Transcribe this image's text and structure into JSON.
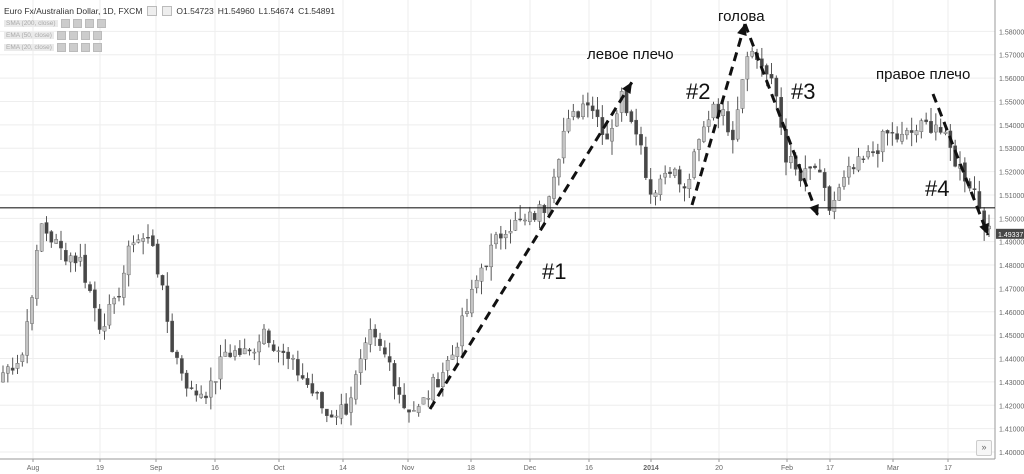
{
  "header": {
    "symbol": "Euro Fx/Australian Dollar, 1D, FXCM",
    "ohlc": {
      "o": "O1.54723",
      "h": "H1.54960",
      "l": "L1.54674",
      "c": "C1.54891"
    }
  },
  "indicators": [
    {
      "label": "SMA (200, close)"
    },
    {
      "label": "EMA (50, close)"
    },
    {
      "label": "EMA (20, close)"
    }
  ],
  "colors": {
    "bull": "#c4c4c4",
    "bear": "#474747",
    "wick": "#555555",
    "grid": "#eeeeee",
    "axis": "#9a9a9a",
    "support": "#222222",
    "arrow": "#111111",
    "price_tag": "#474747",
    "text": "#666666"
  },
  "annotations": {
    "left_shoulder": "левое плечо",
    "head": "голова",
    "right_shoulder": "правое плечо",
    "n1": "#1",
    "n2": "#2",
    "n3": "#3",
    "n4": "#4"
  },
  "controls": {
    "scroll_right": "»"
  },
  "chart_data": {
    "type": "candlestick",
    "title": "Euro Fx/Australian Dollar, 1D, FXCM",
    "ylim": [
      1.4,
      1.59
    ],
    "x_ticks": [
      "Aug",
      "19",
      "Sep",
      "16",
      "Oct",
      "14",
      "Nov",
      "18",
      "Dec",
      "16",
      "2014",
      "20",
      "Feb",
      "17",
      "Mar",
      "17"
    ],
    "y_ticks": [
      "1.58000",
      "1.57000",
      "1.56000",
      "1.55000",
      "1.54000",
      "1.53000",
      "1.52000",
      "1.51000",
      "1.50000",
      "1.49000",
      "1.48000",
      "1.47000",
      "1.46000",
      "1.45000",
      "1.44000",
      "1.43000",
      "1.42000",
      "1.41000",
      "1.40000"
    ],
    "last_price": "1.49337",
    "support_level": 1.5045,
    "waypoints": [
      [
        0,
        1.434
      ],
      [
        4,
        1.442
      ],
      [
        8,
        1.497
      ],
      [
        12,
        1.486
      ],
      [
        16,
        1.482
      ],
      [
        20,
        1.455
      ],
      [
        23,
        1.462
      ],
      [
        27,
        1.492
      ],
      [
        31,
        1.49
      ],
      [
        35,
        1.445
      ],
      [
        39,
        1.425
      ],
      [
        43,
        1.427
      ],
      [
        46,
        1.443
      ],
      [
        51,
        1.442
      ],
      [
        54,
        1.453
      ],
      [
        58,
        1.441
      ],
      [
        62,
        1.432
      ],
      [
        67,
        1.416
      ],
      [
        71,
        1.419
      ],
      [
        76,
        1.449
      ],
      [
        80,
        1.438
      ],
      [
        83,
        1.42
      ],
      [
        86,
        1.418
      ],
      [
        93,
        1.442
      ],
      [
        99,
        1.479
      ],
      [
        104,
        1.497
      ],
      [
        108,
        1.498
      ],
      [
        112,
        1.505
      ],
      [
        116,
        1.537
      ],
      [
        121,
        1.552
      ],
      [
        125,
        1.535
      ],
      [
        128,
        1.552
      ],
      [
        131,
        1.54
      ],
      [
        134,
        1.511
      ],
      [
        138,
        1.523
      ],
      [
        141,
        1.511
      ],
      [
        144,
        1.532
      ],
      [
        147,
        1.55
      ],
      [
        151,
        1.537
      ],
      [
        154,
        1.573
      ],
      [
        157,
        1.566
      ],
      [
        160,
        1.552
      ],
      [
        162,
        1.527
      ],
      [
        165,
        1.516
      ],
      [
        168,
        1.522
      ],
      [
        171,
        1.504
      ],
      [
        175,
        1.519
      ],
      [
        179,
        1.526
      ],
      [
        183,
        1.536
      ],
      [
        186,
        1.534
      ],
      [
        189,
        1.538
      ],
      [
        193,
        1.541
      ],
      [
        197,
        1.525
      ],
      [
        201,
        1.512
      ],
      [
        204,
        1.493
      ]
    ]
  }
}
